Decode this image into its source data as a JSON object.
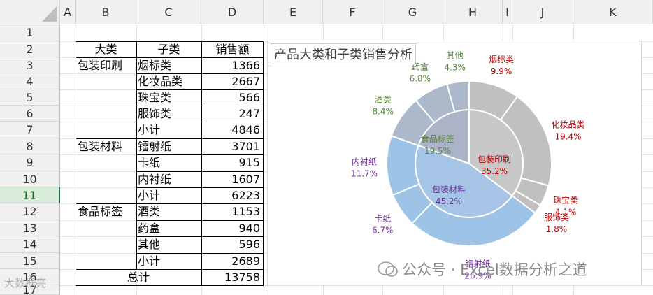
{
  "columns": [
    "A",
    "B",
    "C",
    "D",
    "E",
    "F",
    "G",
    "H",
    "I",
    "J",
    "K"
  ],
  "rows": [
    "1",
    "2",
    "3",
    "4",
    "5",
    "6",
    "7",
    "8",
    "9",
    "10",
    "11",
    "12",
    "13",
    "14",
    "15",
    "16",
    "17"
  ],
  "selected_row": "11",
  "table": {
    "headers": [
      "大类",
      "子类",
      "销售额"
    ],
    "groups": [
      "包装印刷",
      "包装材料",
      "食品标签"
    ],
    "sub": [
      [
        "烟标类",
        "1366"
      ],
      [
        "化妆品类",
        "2667"
      ],
      [
        "珠宝类",
        "566"
      ],
      [
        "服饰类",
        "247"
      ],
      [
        "小计",
        "4846"
      ],
      [
        "镭射纸",
        "3701"
      ],
      [
        "卡纸",
        "915"
      ],
      [
        "内衬纸",
        "1607"
      ],
      [
        "小计",
        "6223"
      ],
      [
        "酒类",
        "1153"
      ],
      [
        "药盒",
        "940"
      ],
      [
        "其他",
        "596"
      ],
      [
        "小计",
        "2689"
      ]
    ],
    "total_label": "总计",
    "total_value": "13758"
  },
  "chart_data": {
    "type": "pie",
    "title": "产品大类和子类销售分析",
    "inner": [
      {
        "name": "包装印刷",
        "value": 4846,
        "pct": "35.2%",
        "color": "#c8c8c8",
        "label_color": "#c00000"
      },
      {
        "name": "包装材料",
        "value": 6223,
        "pct": "45.2%",
        "color": "#a6c4e6",
        "label_color": "#7030a0"
      },
      {
        "name": "食品标签",
        "value": 2689,
        "pct": "19.5%",
        "color": "#aab4c6",
        "label_color": "#548235"
      }
    ],
    "outer": [
      {
        "name": "烟标类",
        "value": 1366,
        "pct": "9.9%",
        "color": "#c0c0c0",
        "label_color": "#c00000"
      },
      {
        "name": "化妆品类",
        "value": 2667,
        "pct": "19.4%",
        "color": "#c0c0c0",
        "label_color": "#c00000"
      },
      {
        "name": "珠宝类",
        "value": 566,
        "pct": "4.1%",
        "color": "#c0c0c0",
        "label_color": "#c00000"
      },
      {
        "name": "服饰类",
        "value": 247,
        "pct": "1.8%",
        "color": "#c0c0c0",
        "label_color": "#c00000"
      },
      {
        "name": "镭射纸",
        "value": 3701,
        "pct": "26.9%",
        "color": "#9dc3e6",
        "label_color": "#7030a0"
      },
      {
        "name": "卡纸",
        "value": 915,
        "pct": "6.7%",
        "color": "#9dc3e6",
        "label_color": "#7030a0"
      },
      {
        "name": "内衬纸",
        "value": 1607,
        "pct": "11.7%",
        "color": "#9dc3e6",
        "label_color": "#7030a0"
      },
      {
        "name": "酒类",
        "value": 1153,
        "pct": "8.4%",
        "color": "#acb9ca",
        "label_color": "#548235"
      },
      {
        "name": "药盒",
        "value": 940,
        "pct": "6.8%",
        "color": "#acb9ca",
        "label_color": "#548235"
      },
      {
        "name": "其他",
        "value": 596,
        "pct": "4.3%",
        "color": "#acb9ca",
        "label_color": "#548235"
      }
    ]
  },
  "watermark": {
    "text": "公众号 · Excel数据分析之道",
    "corner": "大数据亮"
  }
}
